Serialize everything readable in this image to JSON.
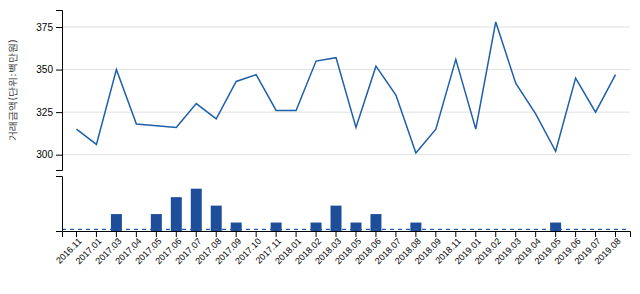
{
  "chart_data": [
    {
      "type": "line",
      "ylabel": "거래금액(단위:백만원)",
      "categories": [
        "2016.11",
        "2017.01",
        "2017.03",
        "2017.04",
        "2017.05",
        "2017.06",
        "2017.07",
        "2017.08",
        "2017.09",
        "2017.10",
        "2017.11",
        "2018.01",
        "2018.02",
        "2018.03",
        "2018.05",
        "2018.06",
        "2018.07",
        "2018.08",
        "2018.09",
        "2018.11",
        "2019.01",
        "2019.02",
        "2019.03",
        "2019.04",
        "2019.05",
        "2019.06",
        "2019.07",
        "2019.08"
      ],
      "values": [
        315,
        306,
        350,
        318,
        317,
        316,
        330,
        321,
        343,
        347,
        326,
        326,
        355,
        357,
        316,
        352,
        335,
        301,
        315,
        356,
        315,
        378,
        342,
        324,
        302,
        345,
        325,
        347
      ],
      "color": "#1E5FA8",
      "ylim": [
        291,
        385
      ],
      "yticks": [
        300,
        325,
        350,
        375
      ],
      "grid": true,
      "tick_labels": "y"
    },
    {
      "type": "bar",
      "categories": [
        "2016.11",
        "2017.01",
        "2017.03",
        "2017.04",
        "2017.05",
        "2017.06",
        "2017.07",
        "2017.08",
        "2017.09",
        "2017.10",
        "2017.11",
        "2018.01",
        "2018.02",
        "2018.03",
        "2018.05",
        "2018.06",
        "2018.07",
        "2018.08",
        "2018.09",
        "2018.11",
        "2019.01",
        "2019.02",
        "2019.03",
        "2019.04",
        "2019.05",
        "2019.06",
        "2019.07",
        "2019.08"
      ],
      "values": [
        0,
        0,
        2,
        0,
        2,
        4,
        5,
        3,
        1,
        0,
        1,
        0,
        1,
        3,
        1,
        2,
        0,
        1,
        0,
        0,
        0,
        0,
        0,
        0,
        1,
        0,
        0,
        0
      ],
      "color": "#1E4D9A",
      "ylim": [
        0,
        6.5
      ],
      "grid": false,
      "tick_labels": "x",
      "reference_lines": [
        {
          "value": 0.2,
          "color": "#1E5FA8",
          "line_style": "dashed"
        }
      ]
    }
  ]
}
